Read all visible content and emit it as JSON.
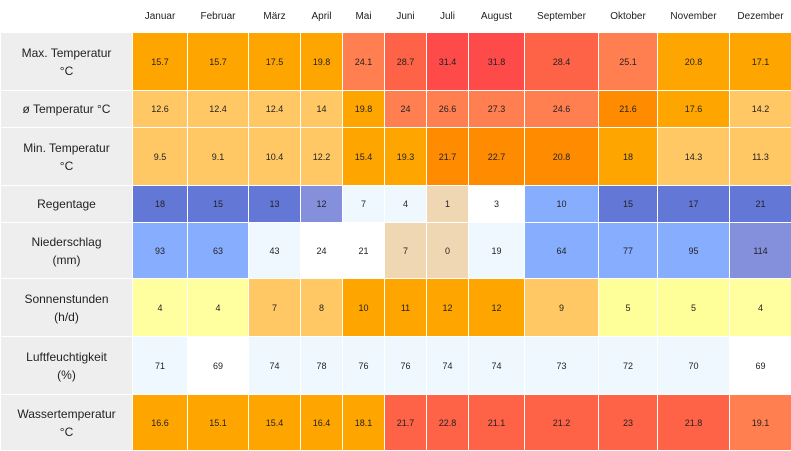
{
  "months": [
    "Januar",
    "Februar",
    "März",
    "April",
    "Mai",
    "Juni",
    "Juli",
    "August",
    "September",
    "Oktober",
    "November",
    "Dezember"
  ],
  "rows": [
    {
      "label": "Max. Temperatur\n°C",
      "values": [
        "15.7",
        "15.7",
        "17.5",
        "19.8",
        "24.1",
        "28.7",
        "31.4",
        "31.8",
        "28.4",
        "25.1",
        "20.8",
        "17.1"
      ],
      "colors": [
        "#ffa500",
        "#ffa500",
        "#ffa500",
        "#ffa500",
        "#ff7f50",
        "#ff6347",
        "#ff4a4a",
        "#ff4a4a",
        "#ff6347",
        "#ff7f50",
        "#ffa500",
        "#ffa500"
      ]
    },
    {
      "label": "ø Temperatur °C",
      "values": [
        "12.6",
        "12.4",
        "12.4",
        "14",
        "19.8",
        "24",
        "26.6",
        "27.3",
        "24.6",
        "21.6",
        "17.6",
        "14.2"
      ],
      "colors": [
        "#ffc864",
        "#ffc864",
        "#ffc864",
        "#ffc864",
        "#ffa500",
        "#ff7f50",
        "#ff7f50",
        "#ff7f50",
        "#ff7f50",
        "#ff8c00",
        "#ffa500",
        "#ffc864"
      ]
    },
    {
      "label": "Min. Temperatur\n°C",
      "values": [
        "9.5",
        "9.1",
        "10.4",
        "12.2",
        "15.4",
        "19.3",
        "21.7",
        "22.7",
        "20.8",
        "18",
        "14.3",
        "11.3"
      ],
      "colors": [
        "#ffc864",
        "#ffc864",
        "#ffc864",
        "#ffc864",
        "#ffa500",
        "#ffa500",
        "#ff8c00",
        "#ff8c00",
        "#ff8c00",
        "#ffa500",
        "#ffc864",
        "#ffc864"
      ]
    },
    {
      "label": "Regentage",
      "values": [
        "18",
        "15",
        "13",
        "12",
        "7",
        "4",
        "1",
        "3",
        "10",
        "15",
        "17",
        "21"
      ],
      "colors": [
        "#6277d6",
        "#6277d6",
        "#6277d6",
        "#8590dc",
        "#f0f8ff",
        "#f0f8ff",
        "#efd7b4",
        "#ffffff",
        "#87adff",
        "#6277d6",
        "#6277d6",
        "#6277d6"
      ]
    },
    {
      "label": "Niederschlag\n(mm)",
      "values": [
        "93",
        "63",
        "43",
        "24",
        "21",
        "7",
        "0",
        "19",
        "64",
        "77",
        "95",
        "114"
      ],
      "colors": [
        "#87adff",
        "#87adff",
        "#f0f8ff",
        "#ffffff",
        "#ffffff",
        "#efd7b4",
        "#efd7b4",
        "#f0f8ff",
        "#87adff",
        "#87adff",
        "#87adff",
        "#8590dc"
      ]
    },
    {
      "label": "Sonnenstunden\n(h/d)",
      "values": [
        "4",
        "4",
        "7",
        "8",
        "10",
        "11",
        "12",
        "12",
        "9",
        "5",
        "5",
        "4"
      ],
      "colors": [
        "#ffffa0",
        "#ffffa0",
        "#ffc864",
        "#ffc864",
        "#ffa500",
        "#ffa500",
        "#ffa500",
        "#ffa500",
        "#ffc864",
        "#ffff9a",
        "#ffff9a",
        "#ffffa0"
      ]
    },
    {
      "label": "Luftfeuchtigkeit\n(%)",
      "values": [
        "71",
        "69",
        "74",
        "78",
        "76",
        "76",
        "74",
        "74",
        "73",
        "72",
        "70",
        "69"
      ],
      "colors": [
        "#f0f8ff",
        "#ffffff",
        "#f0f8ff",
        "#f0f8ff",
        "#f0f8ff",
        "#f0f8ff",
        "#f0f8ff",
        "#f0f8ff",
        "#f0f8ff",
        "#f0f8ff",
        "#f0f8ff",
        "#ffffff"
      ]
    },
    {
      "label": "Wassertemperatur\n°C",
      "values": [
        "16.6",
        "15.1",
        "15.4",
        "16.4",
        "18.1",
        "21.7",
        "22.8",
        "21.1",
        "21.2",
        "23",
        "21.8",
        "19.1"
      ],
      "colors": [
        "#ffa500",
        "#ffa500",
        "#ffa500",
        "#ffa500",
        "#ffa500",
        "#ff6347",
        "#ff6347",
        "#ff6347",
        "#ff6347",
        "#ff6347",
        "#ff6347",
        "#ff7f50"
      ]
    }
  ]
}
